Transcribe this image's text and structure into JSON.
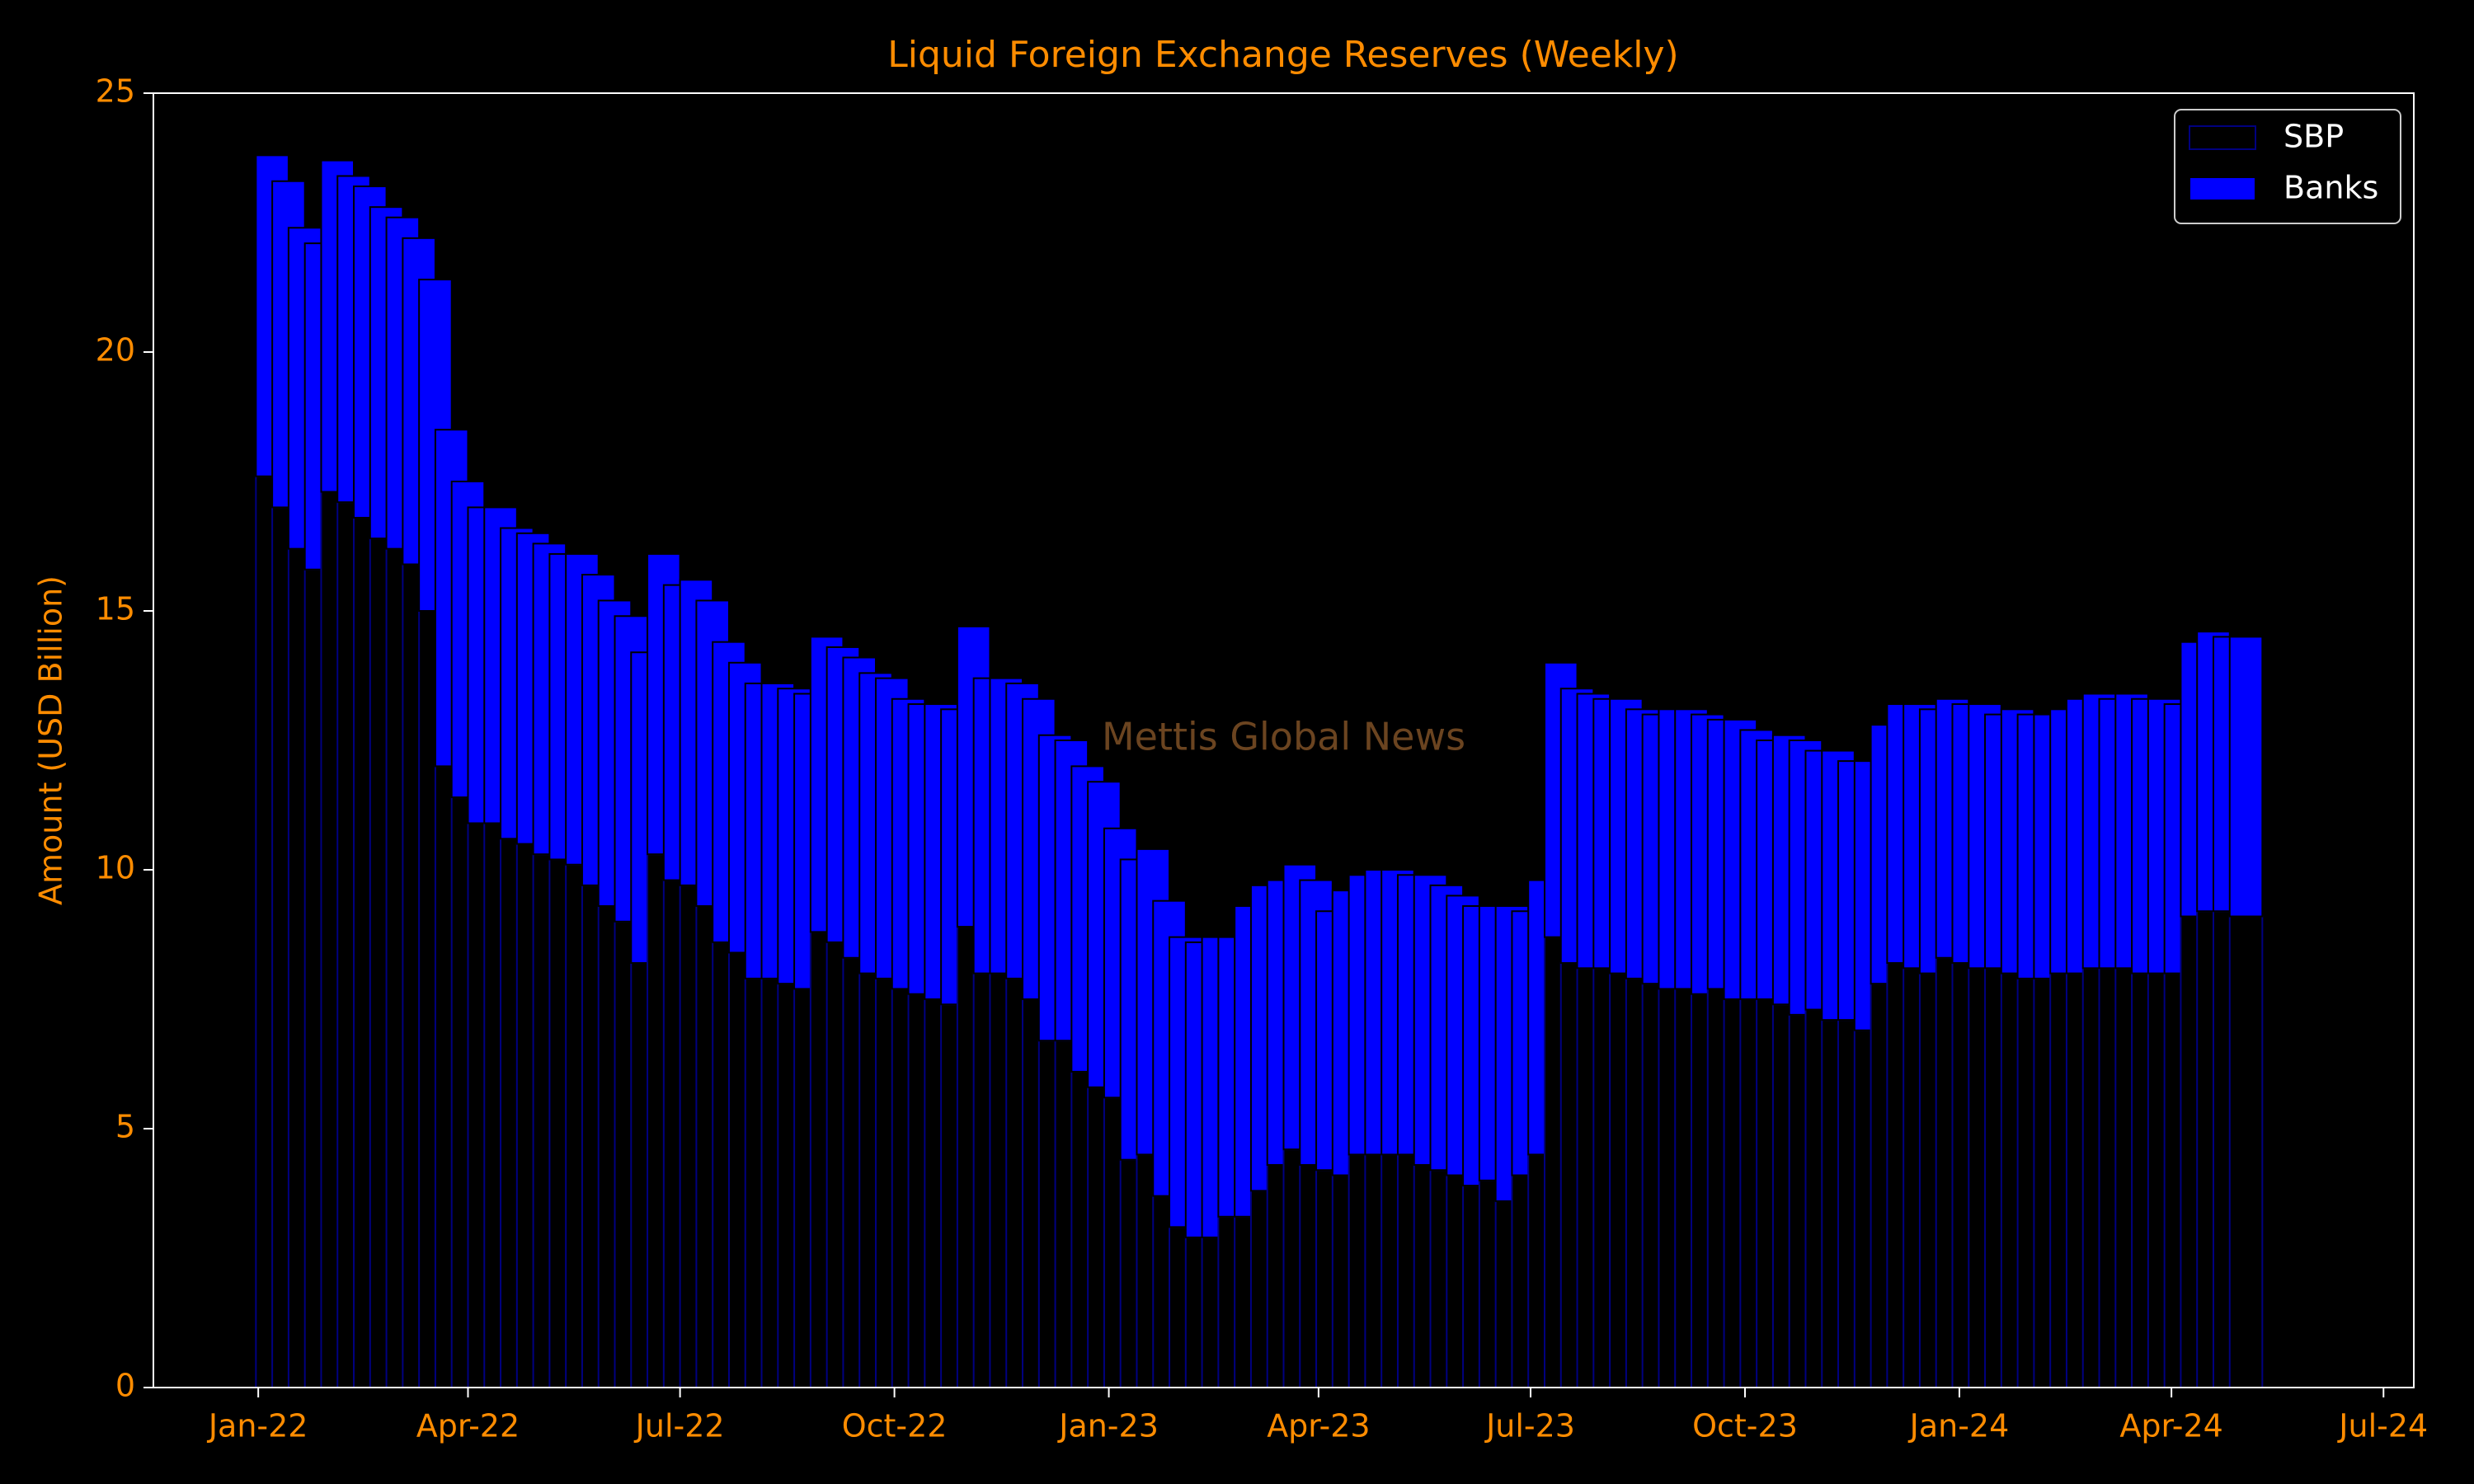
{
  "chart_data": {
    "type": "stacked_bar",
    "title": "Liquid Foreign Exchange Reserves (Weekly)",
    "y_label": "Amount (USD Billion)",
    "watermark": "Mettis Global News",
    "legend": "upper right",
    "x": [
      "2022-01-07",
      "2022-01-14",
      "2022-01-21",
      "2022-01-28",
      "2022-02-04",
      "2022-02-11",
      "2022-02-18",
      "2022-02-25",
      "2022-03-04",
      "2022-03-11",
      "2022-03-18",
      "2022-03-25",
      "2022-04-01",
      "2022-04-08",
      "2022-04-15",
      "2022-04-22",
      "2022-04-29",
      "2022-05-06",
      "2022-05-13",
      "2022-05-20",
      "2022-05-27",
      "2022-06-03",
      "2022-06-10",
      "2022-06-17",
      "2022-06-24",
      "2022-07-01",
      "2022-07-08",
      "2022-07-15",
      "2022-07-22",
      "2022-07-29",
      "2022-08-05",
      "2022-08-12",
      "2022-08-19",
      "2022-08-26",
      "2022-09-02",
      "2022-09-09",
      "2022-09-16",
      "2022-09-23",
      "2022-09-30",
      "2022-10-07",
      "2022-10-14",
      "2022-10-21",
      "2022-10-28",
      "2022-11-04",
      "2022-11-11",
      "2022-11-18",
      "2022-11-25",
      "2022-12-02",
      "2022-12-09",
      "2022-12-16",
      "2022-12-23",
      "2022-12-30",
      "2023-01-06",
      "2023-01-13",
      "2023-01-20",
      "2023-01-27",
      "2023-02-03",
      "2023-02-10",
      "2023-02-17",
      "2023-02-24",
      "2023-03-03",
      "2023-03-10",
      "2023-03-17",
      "2023-03-24",
      "2023-03-31",
      "2023-04-07",
      "2023-04-14",
      "2023-04-21",
      "2023-04-28",
      "2023-05-05",
      "2023-05-12",
      "2023-05-19",
      "2023-05-26",
      "2023-06-02",
      "2023-06-09",
      "2023-06-16",
      "2023-06-23",
      "2023-06-30",
      "2023-07-07",
      "2023-07-14",
      "2023-07-21",
      "2023-07-28",
      "2023-08-04",
      "2023-08-11",
      "2023-08-18",
      "2023-08-25",
      "2023-09-01",
      "2023-09-08",
      "2023-09-15",
      "2023-09-22",
      "2023-09-29",
      "2023-10-06",
      "2023-10-13",
      "2023-10-20",
      "2023-10-27",
      "2023-11-03",
      "2023-11-10",
      "2023-11-17",
      "2023-11-24",
      "2023-12-01",
      "2023-12-08",
      "2023-12-15",
      "2023-12-22",
      "2023-12-29",
      "2024-01-05",
      "2024-01-12",
      "2024-01-19",
      "2024-01-26",
      "2024-02-02",
      "2024-02-09",
      "2024-02-16",
      "2024-02-23",
      "2024-03-01",
      "2024-03-08",
      "2024-03-15",
      "2024-03-22",
      "2024-03-29",
      "2024-04-05",
      "2024-04-12",
      "2024-04-19",
      "2024-04-26",
      "2024-05-03"
    ],
    "series": [
      {
        "name": "SBP",
        "color": "#000000",
        "edgecolor": "#000080",
        "values": [
          17.6,
          17.0,
          16.2,
          15.8,
          17.3,
          17.1,
          16.8,
          16.4,
          16.2,
          15.9,
          15.0,
          12.0,
          11.4,
          10.9,
          10.9,
          10.6,
          10.5,
          10.3,
          10.2,
          10.1,
          9.7,
          9.3,
          9.0,
          8.2,
          10.3,
          9.8,
          9.7,
          9.3,
          8.6,
          8.4,
          7.9,
          7.9,
          7.8,
          7.7,
          8.8,
          8.6,
          8.3,
          8.0,
          7.9,
          7.7,
          7.6,
          7.5,
          7.4,
          8.9,
          8.0,
          8.0,
          7.9,
          7.5,
          6.7,
          6.7,
          6.1,
          5.8,
          5.6,
          4.4,
          4.5,
          3.7,
          3.1,
          2.9,
          2.9,
          3.3,
          3.3,
          3.8,
          4.3,
          4.6,
          4.3,
          4.2,
          4.1,
          4.5,
          4.5,
          4.5,
          4.5,
          4.3,
          4.2,
          4.1,
          3.9,
          4.0,
          3.6,
          4.1,
          4.5,
          8.7,
          8.2,
          8.1,
          8.1,
          8.0,
          7.9,
          7.8,
          7.7,
          7.7,
          7.6,
          7.7,
          7.5,
          7.5,
          7.5,
          7.4,
          7.2,
          7.3,
          7.1,
          7.1,
          6.9,
          7.8,
          8.2,
          8.1,
          8.0,
          8.3,
          8.2,
          8.1,
          8.1,
          8.0,
          7.9,
          7.9,
          8.0,
          8.0,
          8.1,
          8.1,
          8.1,
          8.0,
          8.0,
          8.0,
          9.1,
          9.2,
          9.2,
          9.1
        ]
      },
      {
        "name": "Banks",
        "color": "#0000ff",
        "edgecolor": "#000000",
        "values": [
          6.2,
          6.3,
          6.2,
          6.3,
          6.4,
          6.3,
          6.4,
          6.4,
          6.4,
          6.3,
          6.4,
          6.5,
          6.1,
          6.1,
          6.1,
          6.0,
          6.0,
          6.0,
          5.9,
          6.0,
          6.0,
          5.9,
          5.9,
          6.0,
          5.8,
          5.7,
          5.9,
          5.9,
          5.8,
          5.6,
          5.7,
          5.7,
          5.7,
          5.7,
          5.7,
          5.7,
          5.8,
          5.8,
          5.8,
          5.6,
          5.6,
          5.7,
          5.7,
          5.8,
          5.7,
          5.7,
          5.7,
          5.8,
          5.9,
          5.8,
          5.9,
          5.9,
          5.2,
          5.8,
          5.9,
          5.7,
          5.6,
          5.7,
          5.8,
          5.4,
          6.0,
          5.9,
          5.5,
          5.5,
          5.5,
          5.0,
          5.5,
          5.4,
          5.5,
          5.5,
          5.4,
          5.6,
          5.5,
          5.4,
          5.4,
          5.3,
          5.7,
          5.1,
          5.3,
          5.3,
          5.3,
          5.3,
          5.2,
          5.3,
          5.2,
          5.2,
          5.4,
          5.4,
          5.4,
          5.2,
          5.4,
          5.2,
          5.0,
          5.2,
          5.3,
          5.0,
          5.2,
          5.0,
          5.2,
          5.0,
          5.0,
          5.1,
          5.1,
          5.0,
          5.0,
          5.1,
          4.9,
          5.1,
          5.1,
          5.1,
          5.1,
          5.3,
          5.3,
          5.2,
          5.3,
          5.3,
          5.3,
          5.2,
          5.3,
          5.4,
          5.3,
          5.4
        ]
      }
    ],
    "xlim": [
      "2021-11-17",
      "2024-07-14"
    ],
    "xticks": [
      {
        "value": "2022-01-01",
        "label": "Jan-22"
      },
      {
        "value": "2022-04-01",
        "label": "Apr-22"
      },
      {
        "value": "2022-07-01",
        "label": "Jul-22"
      },
      {
        "value": "2022-10-01",
        "label": "Oct-22"
      },
      {
        "value": "2023-01-01",
        "label": "Jan-23"
      },
      {
        "value": "2023-04-01",
        "label": "Apr-23"
      },
      {
        "value": "2023-07-01",
        "label": "Jul-23"
      },
      {
        "value": "2023-10-01",
        "label": "Oct-23"
      },
      {
        "value": "2024-01-01",
        "label": "Jan-24"
      },
      {
        "value": "2024-04-01",
        "label": "Apr-24"
      },
      {
        "value": "2024-07-01",
        "label": "Jul-24"
      }
    ],
    "ylim": [
      0,
      25
    ],
    "yticks": [
      0,
      5,
      10,
      15,
      20,
      25
    ],
    "grid": false
  }
}
